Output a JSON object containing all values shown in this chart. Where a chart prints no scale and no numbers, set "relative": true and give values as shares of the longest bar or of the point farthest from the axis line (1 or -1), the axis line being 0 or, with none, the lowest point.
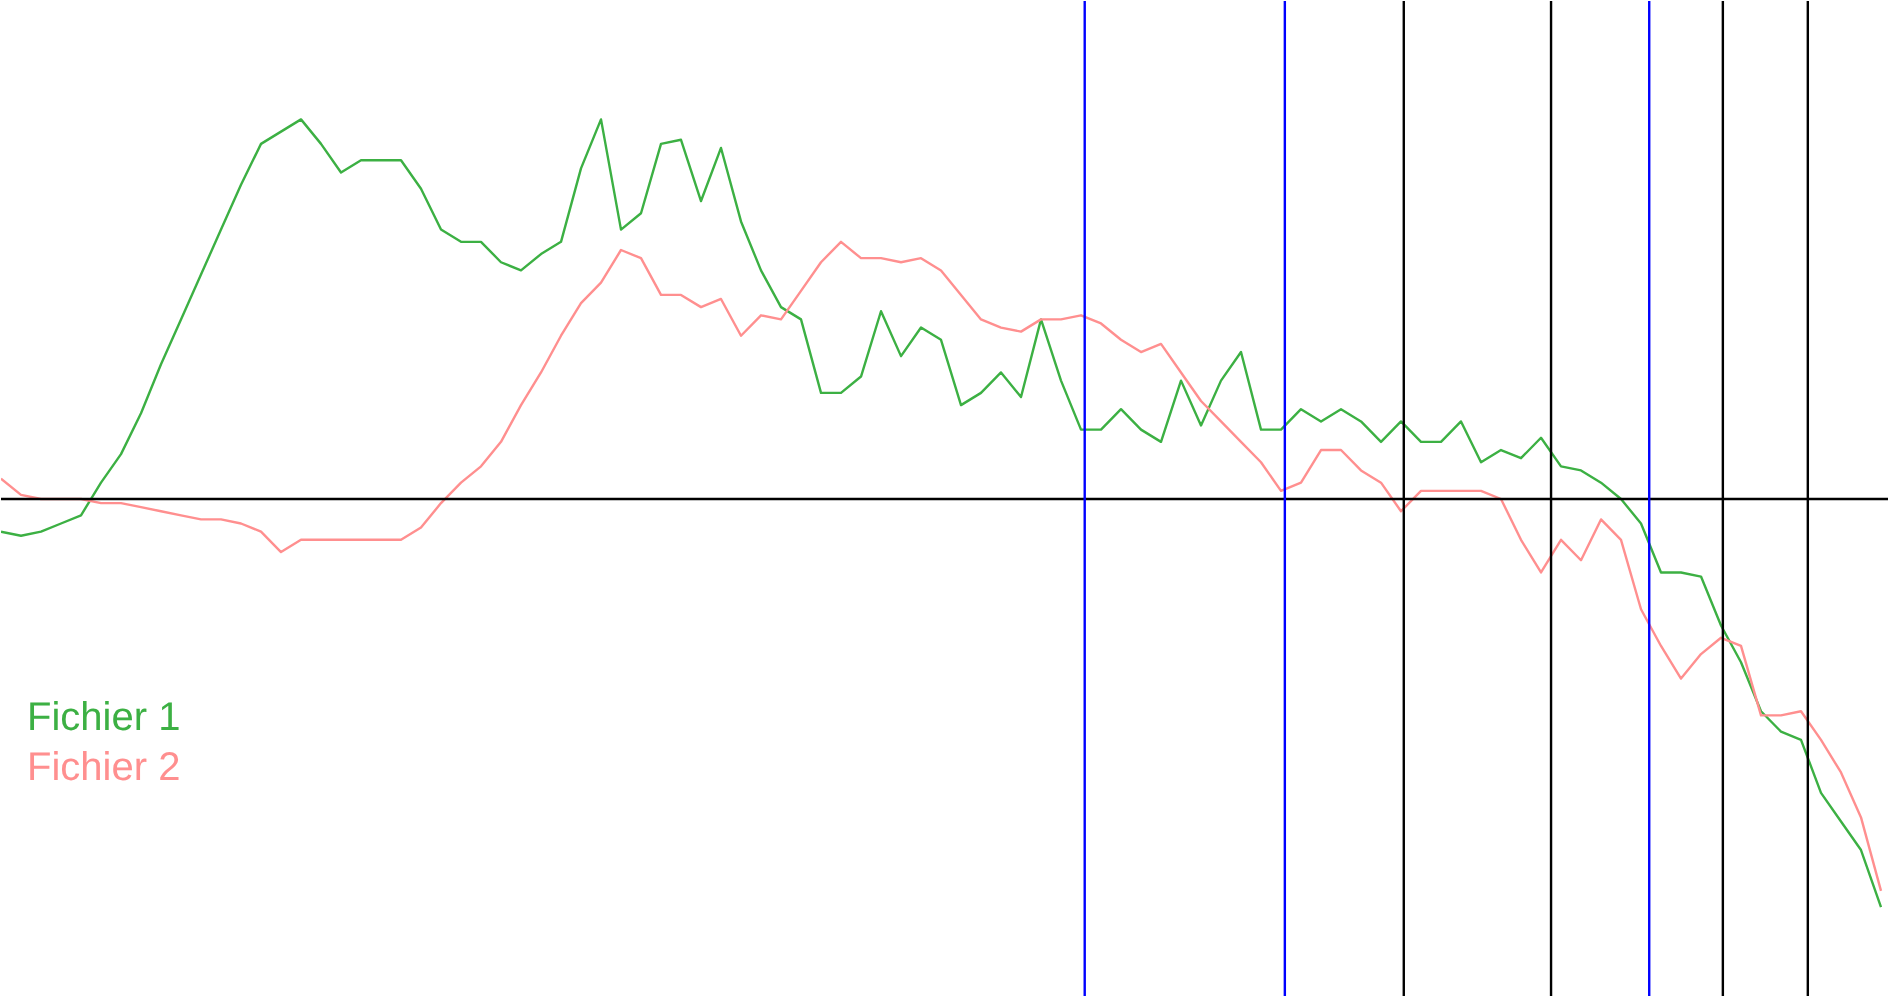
{
  "chart_data": {
    "type": "line",
    "relative": true,
    "line_style": "solid",
    "categories": [
      null,
      null,
      null,
      null,
      null,
      null,
      null,
      null,
      null,
      null,
      null,
      null,
      null,
      null,
      null,
      null,
      null,
      null,
      null,
      null,
      null,
      null,
      null,
      null,
      null,
      null,
      null,
      null,
      null,
      null,
      null,
      null,
      null,
      null,
      null,
      null,
      null,
      null,
      null,
      null,
      null,
      null,
      null,
      null,
      null,
      null,
      null,
      null,
      null,
      null,
      null,
      null,
      null,
      null,
      null,
      null,
      null,
      null,
      null,
      null,
      null,
      null,
      null,
      null,
      null,
      null,
      null,
      null,
      null,
      null,
      null,
      null,
      null,
      null,
      null,
      null,
      null,
      null,
      null,
      null,
      null,
      null,
      null,
      null,
      null,
      null,
      null,
      null,
      null,
      null,
      null,
      null,
      null,
      null,
      null
    ],
    "series": [
      {
        "name": "Fichier 1",
        "color": "#3cb043",
        "values": [
          -0.08,
          -0.09,
          -0.08,
          -0.06,
          -0.04,
          0.04,
          0.11,
          0.21,
          0.33,
          0.44,
          0.55,
          0.66,
          0.77,
          0.87,
          0.9,
          0.93,
          0.87,
          0.8,
          0.83,
          0.83,
          0.83,
          0.76,
          0.66,
          0.63,
          0.63,
          0.58,
          0.56,
          0.6,
          0.63,
          0.81,
          0.93,
          0.66,
          0.7,
          0.87,
          0.88,
          0.73,
          0.86,
          0.68,
          0.56,
          0.47,
          0.44,
          0.26,
          0.26,
          0.3,
          0.46,
          0.35,
          0.42,
          0.39,
          0.23,
          0.26,
          0.31,
          0.25,
          0.44,
          0.29,
          0.17,
          0.17,
          0.22,
          0.17,
          0.14,
          0.29,
          0.18,
          0.29,
          0.36,
          0.17,
          0.17,
          0.22,
          0.19,
          0.22,
          0.19,
          0.14,
          0.19,
          0.14,
          0.14,
          0.19,
          0.09,
          0.12,
          0.1,
          0.15,
          0.08,
          0.07,
          0.04,
          0.0,
          -0.06,
          -0.18,
          -0.18,
          -0.19,
          -0.31,
          -0.4,
          -0.52,
          -0.57,
          -0.59,
          -0.72,
          -0.79,
          -0.86,
          -1.0
        ]
      },
      {
        "name": "Fichier 2",
        "color": "#ff8f8f",
        "values": [
          0.05,
          0.01,
          0.0,
          0.0,
          0.0,
          -0.01,
          -0.01,
          -0.02,
          -0.03,
          -0.04,
          -0.05,
          -0.05,
          -0.06,
          -0.08,
          -0.13,
          -0.1,
          -0.1,
          -0.1,
          -0.1,
          -0.1,
          -0.1,
          -0.07,
          -0.01,
          0.04,
          0.08,
          0.14,
          0.23,
          0.31,
          0.4,
          0.48,
          0.53,
          0.61,
          0.59,
          0.5,
          0.5,
          0.47,
          0.49,
          0.4,
          0.45,
          0.44,
          0.51,
          0.58,
          0.63,
          0.59,
          0.59,
          0.58,
          0.59,
          0.56,
          0.5,
          0.44,
          0.42,
          0.41,
          0.44,
          0.44,
          0.45,
          0.43,
          0.39,
          0.36,
          0.38,
          0.31,
          0.24,
          0.19,
          0.14,
          0.09,
          0.02,
          0.04,
          0.12,
          0.12,
          0.07,
          0.04,
          -0.03,
          0.02,
          0.02,
          0.02,
          0.02,
          0.0,
          -0.1,
          -0.18,
          -0.1,
          -0.15,
          -0.05,
          -0.1,
          -0.27,
          -0.36,
          -0.44,
          -0.38,
          -0.34,
          -0.36,
          -0.53,
          -0.53,
          -0.52,
          -0.59,
          -0.67,
          -0.78,
          -0.96
        ]
      }
    ]
  }
}
